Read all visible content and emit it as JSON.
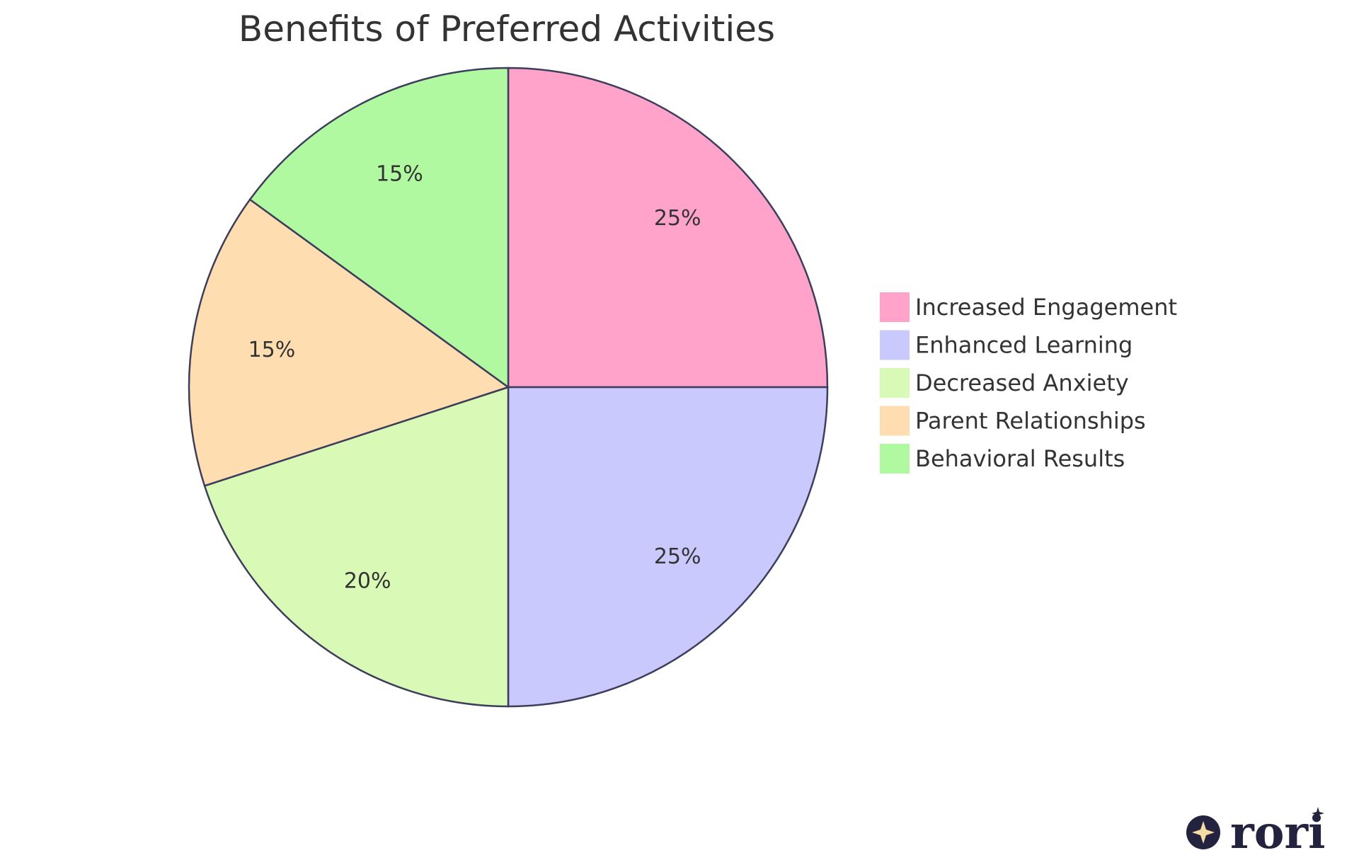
{
  "chart_data": {
    "type": "pie",
    "title": "Benefits of Preferred Activities",
    "slices": [
      {
        "label": "Increased Engagement",
        "value": 25,
        "display": "25%",
        "color": "#ffa3cb"
      },
      {
        "label": "Enhanced Learning",
        "value": 25,
        "display": "25%",
        "color": "#c9c9fe"
      },
      {
        "label": "Decreased Anxiety",
        "value": 20,
        "display": "20%",
        "color": "#d9fab7"
      },
      {
        "label": "Parent Relationships",
        "value": 15,
        "display": "15%",
        "color": "#feddb0"
      },
      {
        "label": "Behavioral Results",
        "value": 15,
        "display": "15%",
        "color": "#b1f9a1"
      }
    ],
    "legend_position": "right",
    "stroke_color": "#3d3d5c"
  },
  "branding": {
    "logo_text": "rori",
    "logo_color": "#24233f",
    "star_color": "#f4dca4"
  }
}
